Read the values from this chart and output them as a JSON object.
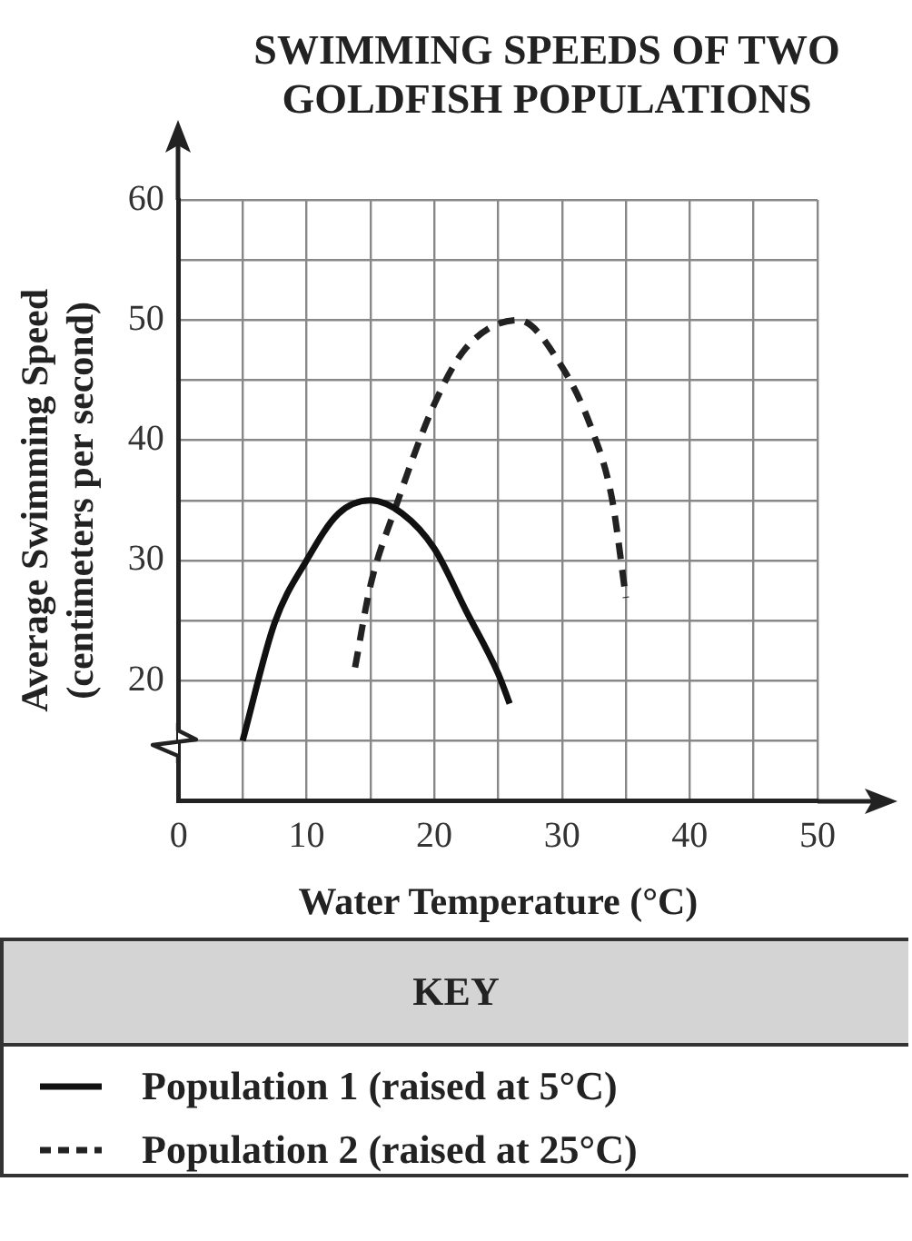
{
  "chart_data": {
    "type": "line",
    "title": "SWIMMING SPEEDS OF TWO GOLDFISH POPULATIONS",
    "xlabel": "Water Temperature (°C)",
    "ylabel": "Average Swimming Speed (centimeters per second)",
    "legend_title": "KEY",
    "legend": "bottom",
    "grid": true,
    "xlim": [
      0,
      50
    ],
    "xticks": [
      0,
      {
        "value": 5,
        "label": null
      },
      10,
      {
        "value": 15,
        "label": null
      },
      20,
      {
        "value": 25,
        "label": null
      },
      30,
      {
        "value": 35,
        "label": null
      },
      40,
      {
        "value": 45,
        "label": null
      },
      50
    ],
    "ylim": [
      10,
      60
    ],
    "yticks": [
      {
        "value": 10,
        "label": null
      },
      {
        "value": 15,
        "label": null
      },
      20,
      {
        "value": 25,
        "label": null
      },
      30,
      {
        "value": 35,
        "label": null
      },
      40,
      {
        "value": 45,
        "label": null
      },
      50,
      {
        "value": 55,
        "label": null
      },
      60
    ],
    "series": [
      {
        "name": "Population 1 (raised at 5°C)",
        "color": "#111111",
        "line_style": "solid",
        "x": [
          5,
          7.5,
          10,
          12.5,
          15,
          17.5,
          20,
          22.5,
          25,
          25.9
        ],
        "values": [
          15,
          24.8,
          30,
          33.9,
          35,
          33.9,
          31,
          25.8,
          20.6,
          18.1
        ]
      },
      {
        "name": "Population 2 (raised at 25°C)",
        "color": "#222222",
        "line_style": "dashed",
        "x": [
          13.8,
          15,
          16.9,
          20,
          22.5,
          26.6,
          30,
          32.3,
          33.9,
          35
        ],
        "values": [
          21.1,
          27.9,
          34.2,
          43,
          47.7,
          50,
          46.1,
          41,
          35.2,
          26.9
        ]
      }
    ]
  }
}
